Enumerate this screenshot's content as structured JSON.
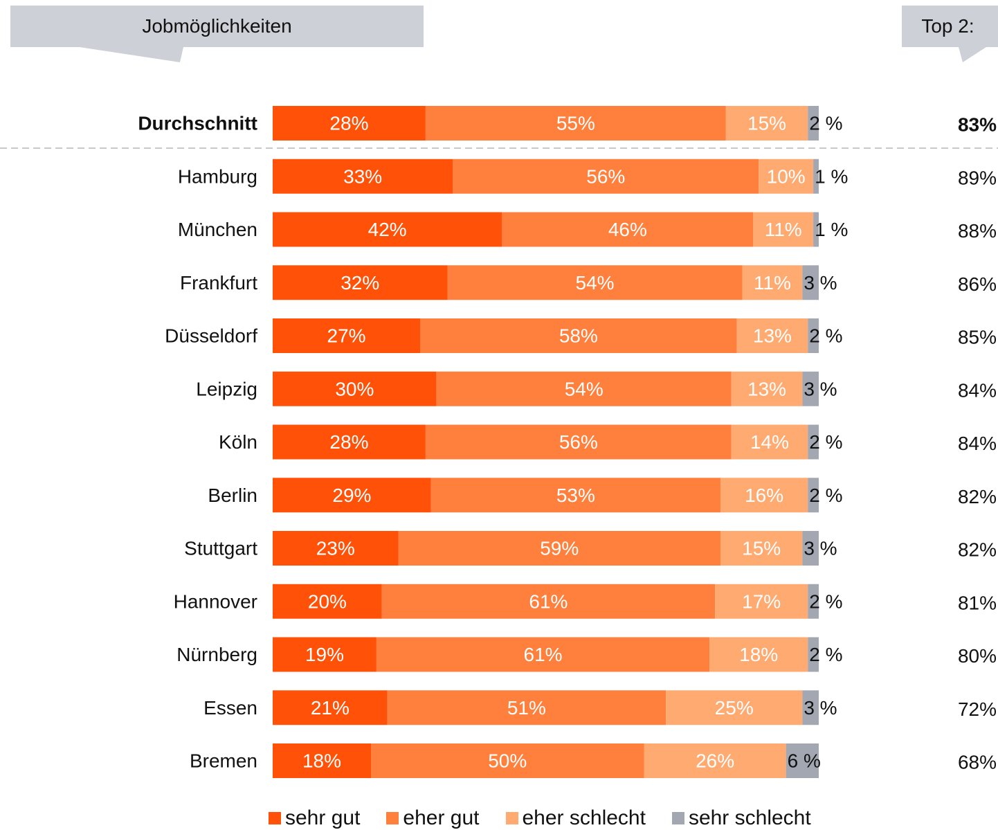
{
  "header": {
    "left_label": "Jobmöglichkeiten",
    "right_label": "Top 2:"
  },
  "colors": {
    "sehr_gut": "#ff5208",
    "eher_gut": "#ff7f3c",
    "eher_schlecht": "#ffaa70",
    "sehr_schlecht": "#a2a7b1",
    "callout_bg": "#cdd1d7",
    "divider": "#c8c8c8"
  },
  "chart_data": {
    "type": "bar",
    "orientation": "horizontal-stacked-100",
    "categories": [
      "Durchschnitt",
      "Hamburg",
      "München",
      "Frankfurt",
      "Düsseldorf",
      "Leipzig",
      "Köln",
      "Berlin",
      "Stuttgart",
      "Hannover",
      "Nürnberg",
      "Essen",
      "Bremen"
    ],
    "highlight_category": "Durchschnitt",
    "series": [
      {
        "name": "sehr gut",
        "values": [
          28,
          33,
          42,
          32,
          27,
          30,
          28,
          29,
          23,
          20,
          19,
          21,
          18
        ],
        "labels": [
          "28%",
          "33%",
          "42%",
          "32%",
          "27%",
          "30%",
          "28%",
          "29%",
          "23%",
          "20%",
          "19%",
          "21%",
          "18%"
        ]
      },
      {
        "name": "eher gut",
        "values": [
          55,
          56,
          46,
          54,
          58,
          54,
          56,
          53,
          59,
          61,
          61,
          51,
          50
        ],
        "labels": [
          "55%",
          "56%",
          "46%",
          "54%",
          "58%",
          "54%",
          "56%",
          "53%",
          "59%",
          "61%",
          "61%",
          "51%",
          "50%"
        ]
      },
      {
        "name": "eher schlecht",
        "values": [
          15,
          10,
          11,
          11,
          13,
          13,
          14,
          16,
          15,
          17,
          18,
          25,
          26
        ],
        "labels": [
          "15%",
          "10%",
          "11%",
          "11%",
          "13%",
          "13%",
          "14%",
          "16%",
          "15%",
          "17%",
          "18%",
          "25%",
          "26%"
        ]
      },
      {
        "name": "sehr schlecht",
        "values": [
          2,
          1,
          1,
          3,
          2,
          3,
          2,
          2,
          3,
          2,
          2,
          3,
          6
        ],
        "labels": [
          "2 %",
          "1 %",
          "1 %",
          "3 %",
          "2 %",
          "3 %",
          "2 %",
          "2 %",
          "3 %",
          "2 %",
          "2 %",
          "3 %",
          "6 %"
        ]
      }
    ],
    "top2": [
      83,
      89,
      88,
      86,
      85,
      84,
      84,
      82,
      82,
      81,
      80,
      72,
      68
    ],
    "top2_labels": [
      "83%",
      "89%",
      "88%",
      "86%",
      "85%",
      "84%",
      "84%",
      "82%",
      "82%",
      "81%",
      "80%",
      "72%",
      "68%"
    ],
    "xlim": [
      0,
      100
    ],
    "grid": false,
    "legend": "bottom"
  }
}
